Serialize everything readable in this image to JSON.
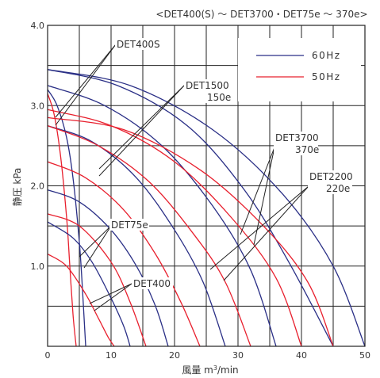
{
  "chart_data": {
    "type": "line",
    "title": "<DET400(S) ～ DET3700・DET75e ～ 370e>",
    "xlabel": "風量 m³/min",
    "ylabel": "静圧 kPa",
    "xlim": [
      0,
      50
    ],
    "ylim": [
      0,
      4.0
    ],
    "x_ticks": [
      "0",
      "10",
      "20",
      "30",
      "40",
      "50"
    ],
    "y_ticks": [
      "1.0",
      "2.0",
      "3.0",
      "4.0"
    ],
    "grid": true,
    "legend": {
      "position": "top-right",
      "entries": [
        {
          "name": "60Hz",
          "color": "#2a2f86"
        },
        {
          "name": "50Hz",
          "color": "#e8202e"
        }
      ]
    },
    "series": [
      {
        "color": "#e8202e",
        "x": [
          0,
          1.0,
          2.0,
          3.0,
          3.5,
          4.0,
          4.5
        ],
        "y": [
          3.15,
          2.9,
          2.4,
          1.6,
          1.0,
          0.4,
          0.0
        ]
      },
      {
        "color": "#2a2f86",
        "x": [
          0,
          1.5,
          3.0,
          4.0,
          5.0,
          5.5,
          6.0
        ],
        "y": [
          3.2,
          3.0,
          2.6,
          2.1,
          1.3,
          0.7,
          0.0
        ]
      },
      {
        "color": "#e8202e",
        "x": [
          0,
          3,
          6,
          8,
          9.5,
          10.5
        ],
        "y": [
          1.15,
          1.0,
          0.65,
          0.35,
          0.12,
          0.0
        ]
      },
      {
        "color": "#2a2f86",
        "x": [
          0,
          4,
          7,
          10,
          12,
          13
        ],
        "y": [
          1.55,
          1.35,
          1.05,
          0.6,
          0.25,
          0.0
        ]
      },
      {
        "color": "#e8202e",
        "x": [
          0,
          5,
          10,
          13,
          15.5
        ],
        "y": [
          1.65,
          1.5,
          1.05,
          0.55,
          0.0
        ]
      },
      {
        "color": "#2a2f86",
        "x": [
          0,
          5,
          10,
          14,
          17,
          19
        ],
        "y": [
          1.95,
          1.8,
          1.45,
          1.0,
          0.5,
          0.0
        ]
      },
      {
        "color": "#e8202e",
        "x": [
          0,
          6,
          12,
          17,
          21,
          24
        ],
        "y": [
          2.3,
          2.1,
          1.7,
          1.15,
          0.55,
          0.0
        ]
      },
      {
        "color": "#2a2f86",
        "x": [
          0,
          7,
          14,
          20,
          24.5,
          28
        ],
        "y": [
          2.75,
          2.55,
          2.1,
          1.45,
          0.8,
          0.0
        ]
      },
      {
        "color": "#e8202e",
        "x": [
          0,
          8,
          16,
          23,
          28,
          32
        ],
        "y": [
          2.75,
          2.5,
          2.05,
          1.4,
          0.8,
          0.0
        ]
      },
      {
        "color": "#2a2f86",
        "x": [
          0,
          9,
          18,
          26,
          32,
          36
        ],
        "y": [
          3.25,
          3.0,
          2.5,
          1.75,
          0.95,
          0.0
        ]
      },
      {
        "color": "#e8202e",
        "x": [
          0,
          10,
          20,
          29,
          36,
          40
        ],
        "y": [
          2.95,
          2.75,
          2.3,
          1.6,
          0.85,
          0.0
        ]
      },
      {
        "color": "#2a2f86",
        "x": [
          0,
          11,
          22,
          31,
          38,
          45
        ],
        "y": [
          3.45,
          3.25,
          2.75,
          1.95,
          1.05,
          0.0
        ]
      },
      {
        "color": "#e8202e",
        "x": [
          0,
          12,
          24,
          34,
          41,
          45
        ],
        "y": [
          2.85,
          2.7,
          2.2,
          1.5,
          0.8,
          0.0
        ]
      },
      {
        "color": "#2a2f86",
        "x": [
          0,
          13,
          26,
          37,
          45,
          50
        ],
        "y": [
          3.45,
          3.25,
          2.7,
          1.9,
          1.0,
          0.0
        ]
      }
    ],
    "annotations": [
      {
        "id": "det400s",
        "text": "DET400S"
      },
      {
        "id": "det1500",
        "text": "DET1500"
      },
      {
        "id": "det1500e",
        "text": "150e"
      },
      {
        "id": "det3700",
        "text": "DET3700"
      },
      {
        "id": "det3700e",
        "text": "370e"
      },
      {
        "id": "det2200",
        "text": "DET2200"
      },
      {
        "id": "det2200e",
        "text": "220e"
      },
      {
        "id": "det75e",
        "text": "DET75e"
      },
      {
        "id": "det400",
        "text": "DET400"
      }
    ]
  }
}
